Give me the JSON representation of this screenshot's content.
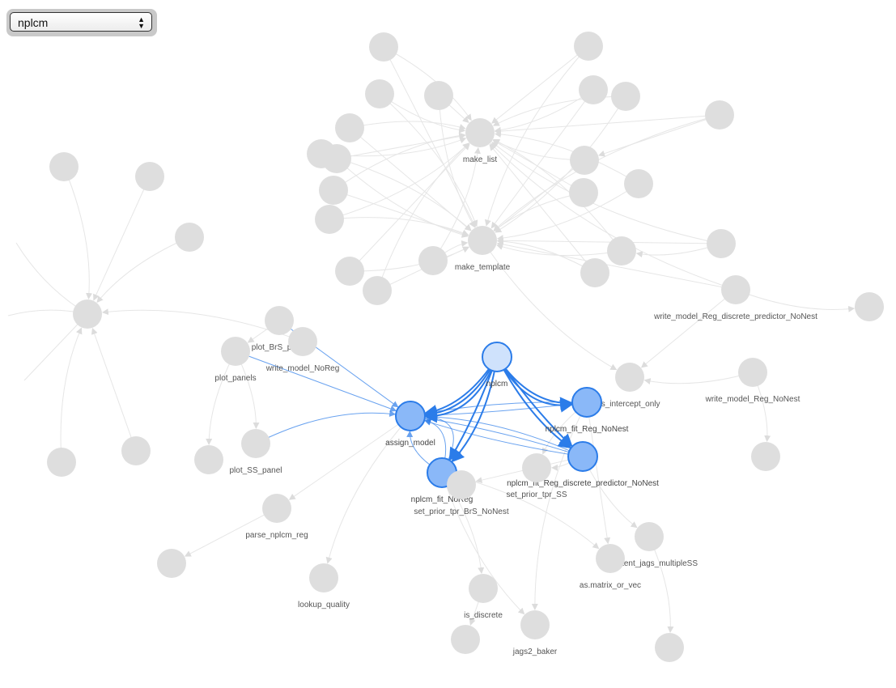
{
  "selector": {
    "selected": "nplcm"
  },
  "graph": {
    "colors": {
      "inactive_node": "#dedede",
      "inactive_edge": "#e6e6e6",
      "active_node": "#8ab8f8",
      "selected_node": "#cfe2fc",
      "active_border": "#2b7ce9",
      "active_edge": "#2b7ce9"
    },
    "labels": {
      "make_list": "make_list",
      "make_template": "make_template",
      "plot_BrS_panel": "plot_BrS_panel",
      "write_model_NoReg": "write_model_NoReg",
      "plot_panels": "plot_panels",
      "plot_SS_panel": "plot_SS_panel",
      "assign_model": "assign_model",
      "nplcm": "nplcm",
      "is_intercept_only": "is_intercept_only",
      "nplcm_fit_Reg_NoNest": "nplcm_fit_Reg_NoNest",
      "nplcm_fit_Reg_discrete_predictor_NoNest": "nplcm_fit_Reg_discrete_predictor_NoNest",
      "nplcm_fit_NoReg": "nplcm_fit_NoReg",
      "set_prior_tpr_BrS_NoNest": "set_prior_tpr_BrS_NoNest",
      "set_prior_tpr_SS": "set_prior_tpr_SS",
      "write_model_Reg_discrete_predictor_NoNest": "write_model_Reg_discrete_predictor_NoNest",
      "write_model_Reg_NoNest": "write_model_Reg_NoNest",
      "parse_nplcm_reg": "parse_nplcm_reg",
      "lookup_quality": "lookup_quality",
      "is_discrete": "is_discrete",
      "jags2_baker": "jags2_baker",
      "init_latent_jags_multipleSS": "init_latent_jags_multipleSS",
      "as.matrix_or_vec": "as.matrix_or_vec"
    },
    "selected_node": "nplcm",
    "highlighted_nodes": [
      "assign_model",
      "nplcm_fit_Reg_NoNest",
      "nplcm_fit_Reg_discrete_predictor_NoNest",
      "nplcm_fit_NoReg"
    ]
  }
}
